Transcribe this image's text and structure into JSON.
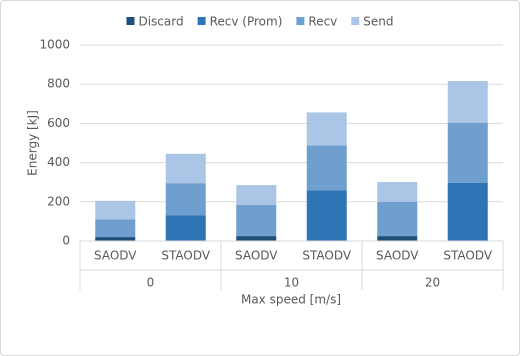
{
  "chart_data": {
    "type": "stacked-bar",
    "categories": [
      "SAODV",
      "STAODV",
      "SAODV",
      "STAODV",
      "SAODV",
      "STAODV"
    ],
    "groups": [
      "0",
      "10",
      "20"
    ],
    "xlabel": "Max speed [m/s]",
    "ylabel": "Energy [kJ]",
    "series": [
      {
        "name": "Discard",
        "color": "#1f4e79",
        "values": [
          20,
          0,
          25,
          0,
          25,
          0
        ]
      },
      {
        "name": "Recv (Prom)",
        "color": "#2e75b6",
        "values": [
          0,
          130,
          0,
          258,
          0,
          296
        ]
      },
      {
        "name": "Recv",
        "color": "#6f9fcf",
        "values": [
          90,
          165,
          160,
          230,
          174,
          306
        ]
      },
      {
        "name": "Send",
        "color": "#abc5e6",
        "values": [
          95,
          150,
          100,
          168,
          102,
          214
        ]
      }
    ],
    "ylim": [
      0,
      1000
    ],
    "yticks": [
      0,
      200,
      400,
      600,
      800,
      1000
    ],
    "grid": true,
    "legend": "top"
  }
}
